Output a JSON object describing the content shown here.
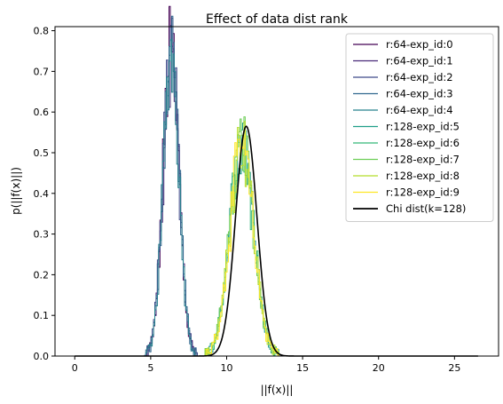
{
  "chart_data": {
    "type": "line",
    "title": "Effect of data dist rank",
    "xlabel": "||f(x)||",
    "ylabel": "p(||f(x)||)",
    "xlim": [
      -1.3,
      27.9
    ],
    "ylim": [
      0,
      0.81
    ],
    "xticks": [
      0,
      5,
      10,
      15,
      20,
      25
    ],
    "yticks": [
      0.0,
      0.1,
      0.2,
      0.3,
      0.4,
      0.5,
      0.6,
      0.7,
      0.8
    ],
    "grid": false,
    "legend_position": "top-right",
    "series": [
      {
        "name": "r:64-exp_id:0",
        "color": "#440154",
        "kind": "histogram",
        "mean": 6.3,
        "std": 0.52,
        "peak": 0.76,
        "x_start": 0,
        "x_end": 26.6
      },
      {
        "name": "r:64-exp_id:1",
        "color": "#482878",
        "kind": "histogram",
        "mean": 6.32,
        "std": 0.52,
        "peak": 0.75,
        "x_start": 0,
        "x_end": 26.6
      },
      {
        "name": "r:64-exp_id:2",
        "color": "#3e4989",
        "kind": "histogram",
        "mean": 6.28,
        "std": 0.53,
        "peak": 0.76,
        "x_start": 0,
        "x_end": 26.6
      },
      {
        "name": "r:64-exp_id:3",
        "color": "#31688e",
        "kind": "histogram",
        "mean": 6.3,
        "std": 0.52,
        "peak": 0.77,
        "x_start": 0,
        "x_end": 26.6
      },
      {
        "name": "r:64-exp_id:4",
        "color": "#26828e",
        "kind": "histogram",
        "mean": 6.31,
        "std": 0.52,
        "peak": 0.75,
        "x_start": 0,
        "x_end": 26.6
      },
      {
        "name": "r:128-exp_id:5",
        "color": "#1f9e89",
        "kind": "histogram",
        "mean": 10.95,
        "std": 0.78,
        "peak": 0.52,
        "x_start": 0,
        "x_end": 26.6
      },
      {
        "name": "r:128-exp_id:6",
        "color": "#35b779",
        "kind": "histogram",
        "mean": 10.95,
        "std": 0.78,
        "peak": 0.51,
        "x_start": 0,
        "x_end": 26.6
      },
      {
        "name": "r:128-exp_id:7",
        "color": "#6ece58",
        "kind": "histogram",
        "mean": 10.95,
        "std": 0.78,
        "peak": 0.52,
        "x_start": 0,
        "x_end": 26.6
      },
      {
        "name": "r:128-exp_id:8",
        "color": "#b5de2b",
        "kind": "histogram",
        "mean": 10.95,
        "std": 0.78,
        "peak": 0.53,
        "x_start": 0,
        "x_end": 26.6
      },
      {
        "name": "r:128-exp_id:9",
        "color": "#fde725",
        "kind": "histogram",
        "mean": 10.95,
        "std": 0.78,
        "peak": 0.51,
        "x_start": 0,
        "x_end": 26.6
      },
      {
        "name": "Chi dist(k=128)",
        "color": "#000000",
        "kind": "curve",
        "mean": 11.29,
        "std": 0.705,
        "peak": 0.565,
        "x_start": 0,
        "x_end": 26.6
      }
    ]
  }
}
